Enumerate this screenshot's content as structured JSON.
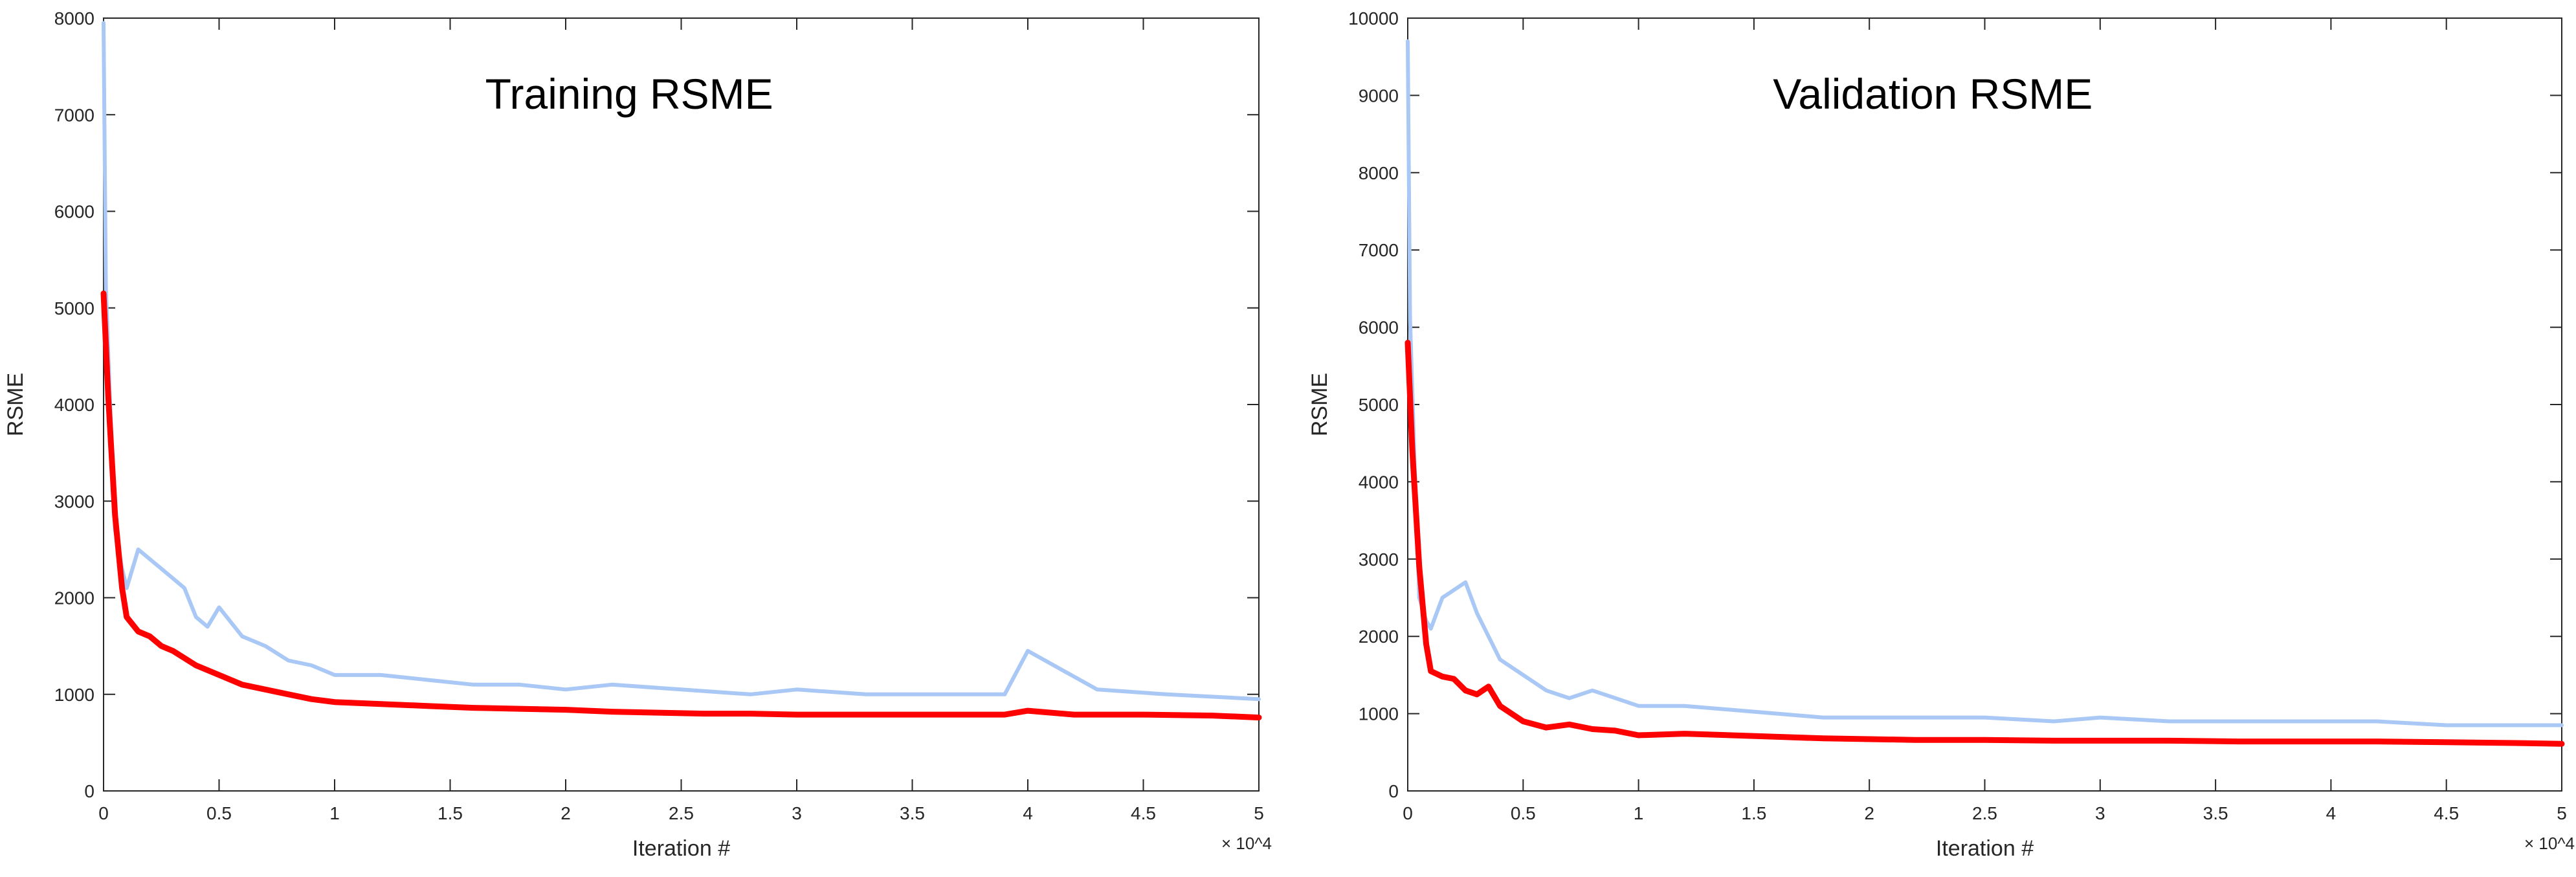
{
  "chart_data": [
    {
      "type": "line",
      "title": "Training RSME",
      "xlabel": "Iteration #",
      "ylabel": "RSME",
      "x_exponent_label": "× 10^4",
      "xlim": [
        0,
        5
      ],
      "ylim": [
        0,
        8000
      ],
      "xticks": [
        "0",
        "0.5",
        "1",
        "1.5",
        "2",
        "2.5",
        "3",
        "3.5",
        "4",
        "4.5",
        "5"
      ],
      "yticks": [
        "0",
        "1000",
        "2000",
        "3000",
        "4000",
        "5000",
        "6000",
        "7000",
        "8000"
      ],
      "grid": false,
      "series": [
        {
          "role": "raw",
          "color": "#a9c8f5",
          "x": [
            0,
            0.01,
            0.03,
            0.05,
            0.08,
            0.1,
            0.15,
            0.2,
            0.25,
            0.3,
            0.35,
            0.4,
            0.45,
            0.5,
            0.6,
            0.7,
            0.8,
            0.9,
            1.0,
            1.2,
            1.4,
            1.6,
            1.8,
            2.0,
            2.2,
            2.5,
            2.8,
            3.0,
            3.3,
            3.6,
            3.9,
            4.0,
            4.3,
            4.6,
            5.0
          ],
          "y": [
            7950,
            5200,
            3900,
            2700,
            2300,
            2100,
            2500,
            2400,
            2300,
            2200,
            2100,
            1800,
            1700,
            1900,
            1600,
            1500,
            1350,
            1300,
            1200,
            1200,
            1150,
            1100,
            1100,
            1050,
            1100,
            1050,
            1000,
            1050,
            1000,
            1000,
            1000,
            1450,
            1050,
            1000,
            950
          ]
        },
        {
          "role": "smoothed",
          "color": "#ff0000",
          "x": [
            0,
            0.02,
            0.05,
            0.08,
            0.1,
            0.15,
            0.2,
            0.25,
            0.3,
            0.4,
            0.5,
            0.6,
            0.7,
            0.8,
            0.9,
            1.0,
            1.2,
            1.4,
            1.6,
            1.8,
            2.0,
            2.2,
            2.4,
            2.6,
            2.8,
            3.0,
            3.3,
            3.6,
            3.9,
            4.0,
            4.2,
            4.5,
            4.8,
            5.0
          ],
          "y": [
            5150,
            4100,
            2850,
            2100,
            1800,
            1650,
            1600,
            1500,
            1450,
            1300,
            1200,
            1100,
            1050,
            1000,
            950,
            920,
            900,
            880,
            860,
            850,
            840,
            820,
            810,
            800,
            800,
            790,
            790,
            790,
            790,
            830,
            790,
            790,
            780,
            760
          ]
        }
      ]
    },
    {
      "type": "line",
      "title": "Validation RSME",
      "xlabel": "Iteration #",
      "ylabel": "RSME",
      "x_exponent_label": "× 10^4",
      "xlim": [
        0,
        5
      ],
      "ylim": [
        0,
        10000
      ],
      "xticks": [
        "0",
        "0.5",
        "1",
        "1.5",
        "2",
        "2.5",
        "3",
        "3.5",
        "4",
        "4.5",
        "5"
      ],
      "yticks": [
        "0",
        "1000",
        "2000",
        "3000",
        "4000",
        "5000",
        "6000",
        "7000",
        "8000",
        "9000",
        "10000"
      ],
      "grid": false,
      "series": [
        {
          "role": "raw",
          "color": "#a9c8f5",
          "x": [
            0,
            0.01,
            0.03,
            0.05,
            0.08,
            0.1,
            0.15,
            0.2,
            0.25,
            0.3,
            0.35,
            0.4,
            0.5,
            0.6,
            0.7,
            0.8,
            0.9,
            1.0,
            1.2,
            1.4,
            1.6,
            1.8,
            2.0,
            2.2,
            2.5,
            2.8,
            3.0,
            3.3,
            3.6,
            3.9,
            4.2,
            4.5,
            5.0
          ],
          "y": [
            9700,
            6100,
            4200,
            2500,
            2200,
            2100,
            2500,
            2600,
            2700,
            2300,
            2000,
            1700,
            1500,
            1300,
            1200,
            1300,
            1200,
            1100,
            1100,
            1050,
            1000,
            950,
            950,
            950,
            950,
            900,
            950,
            900,
            900,
            900,
            900,
            850,
            850
          ]
        },
        {
          "role": "smoothed",
          "color": "#ff0000",
          "x": [
            0,
            0.02,
            0.05,
            0.08,
            0.1,
            0.15,
            0.2,
            0.25,
            0.3,
            0.35,
            0.4,
            0.5,
            0.6,
            0.7,
            0.8,
            0.9,
            1.0,
            1.2,
            1.4,
            1.6,
            1.8,
            2.0,
            2.2,
            2.5,
            2.8,
            3.0,
            3.3,
            3.6,
            3.9,
            4.2,
            4.5,
            4.8,
            5.0
          ],
          "y": [
            5800,
            4400,
            2900,
            1900,
            1550,
            1480,
            1450,
            1300,
            1250,
            1350,
            1100,
            900,
            820,
            860,
            800,
            780,
            720,
            740,
            720,
            700,
            680,
            670,
            660,
            660,
            650,
            650,
            650,
            640,
            640,
            640,
            630,
            620,
            610
          ]
        }
      ]
    }
  ]
}
